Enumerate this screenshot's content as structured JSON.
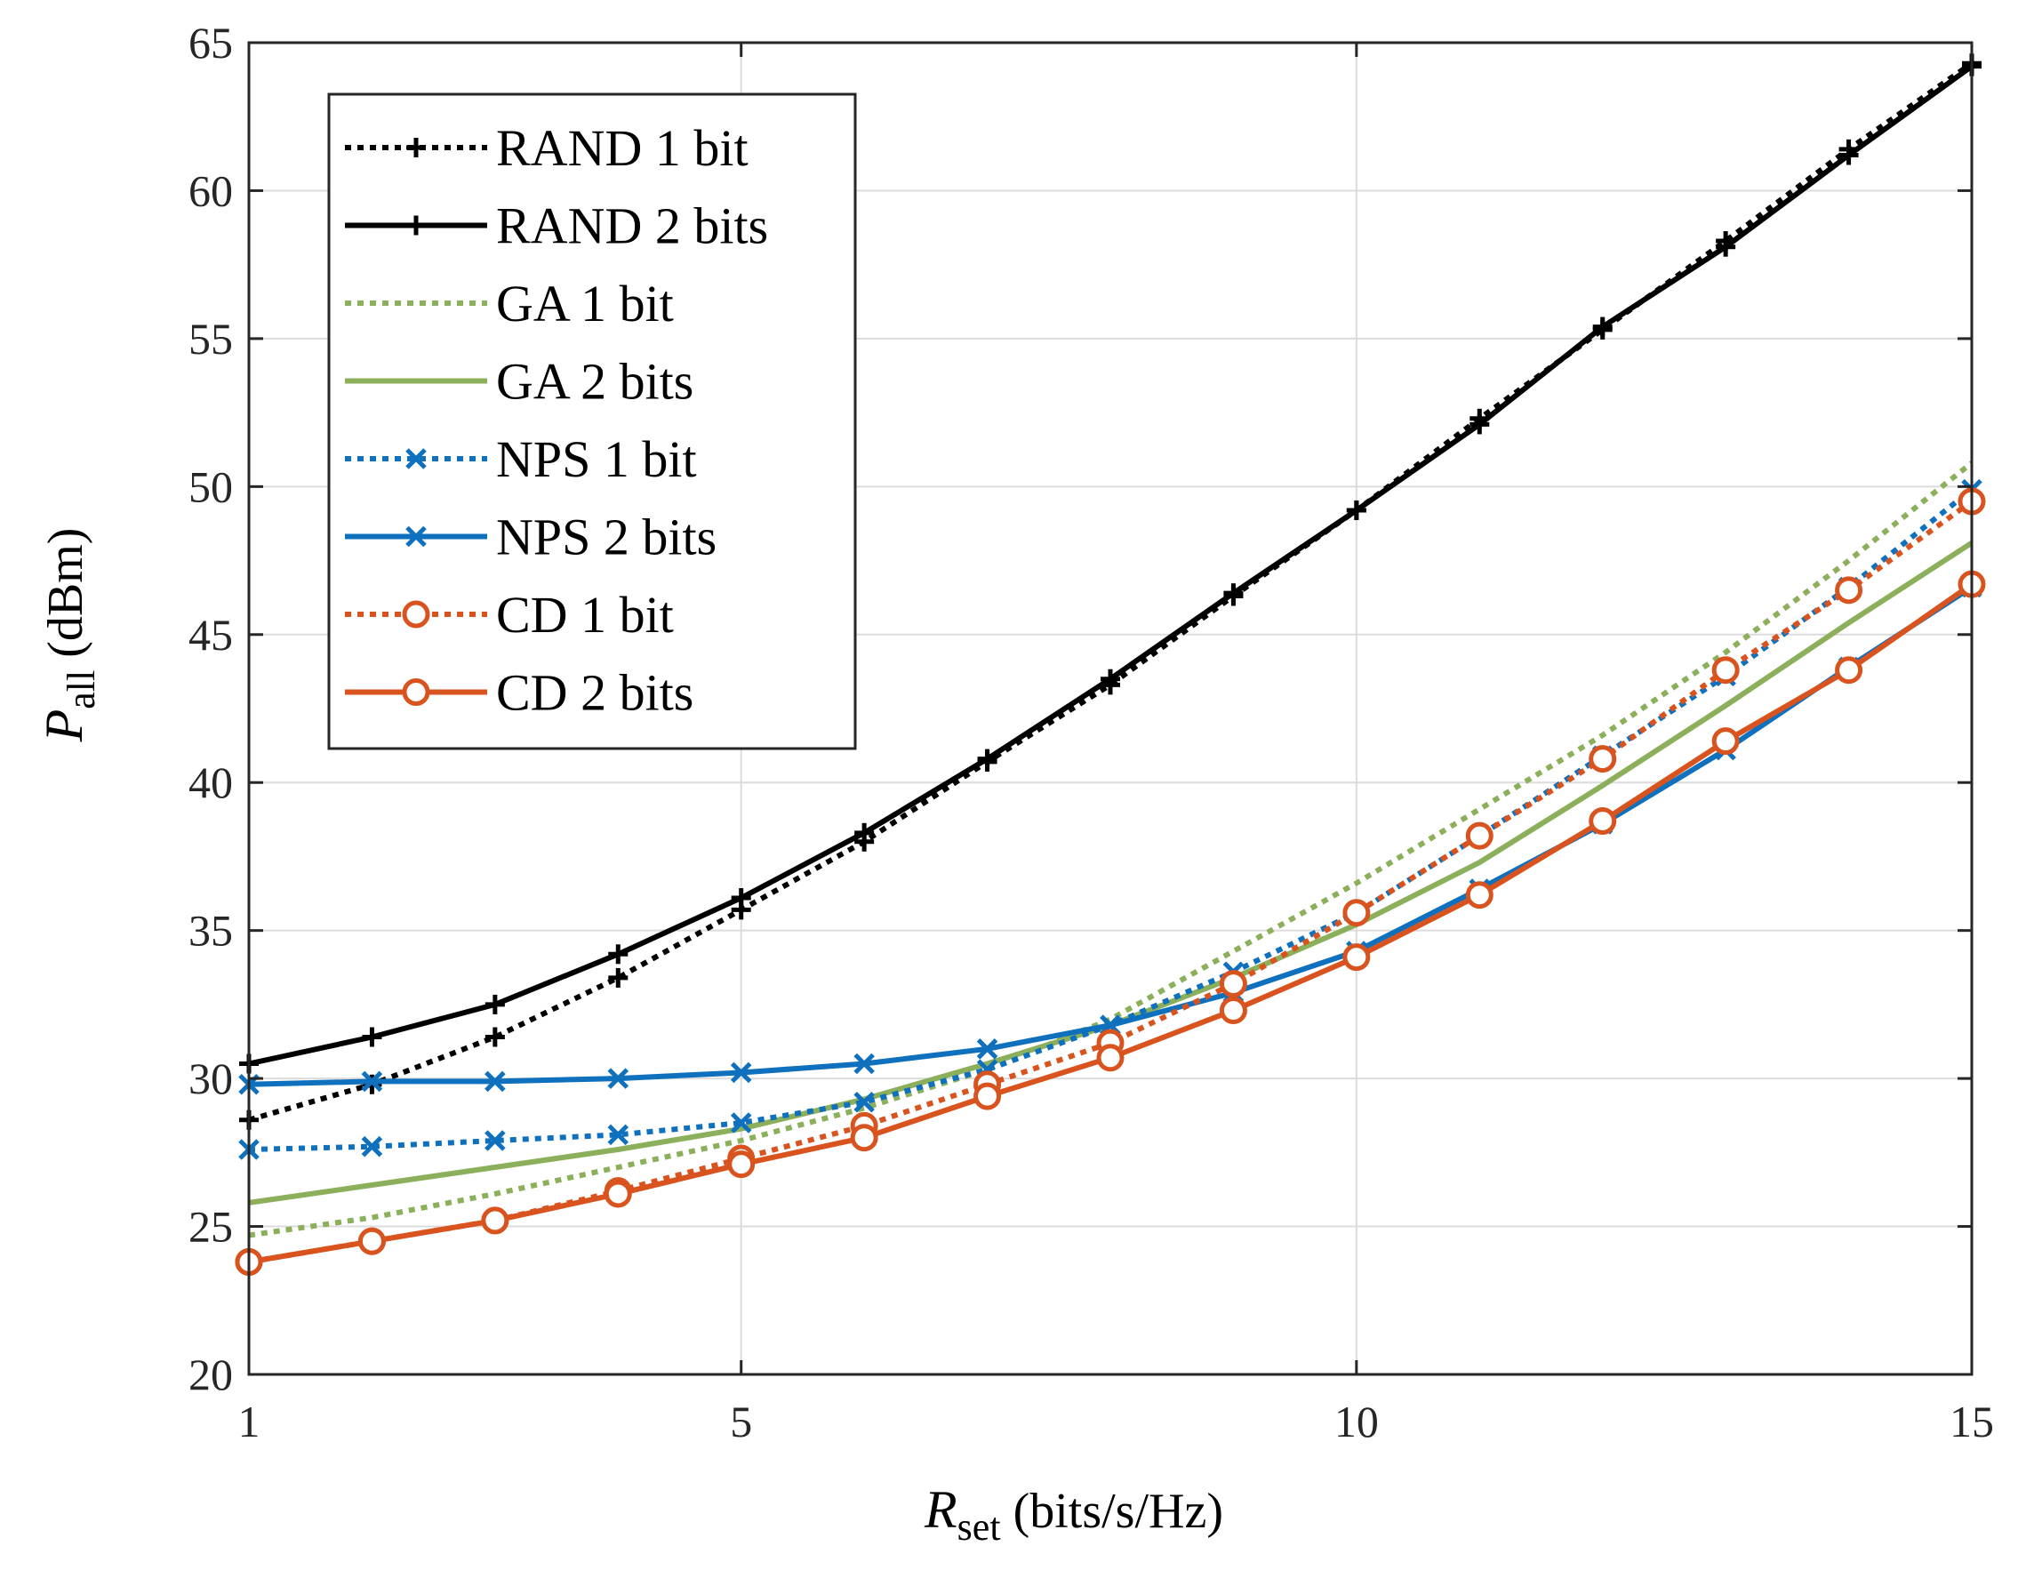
{
  "chart_data": {
    "type": "line",
    "title": "",
    "xlabel": {
      "main": "R",
      "sub": "set",
      "unit": " (bits/s/Hz)"
    },
    "ylabel": {
      "main": "P",
      "sub": "all",
      "unit": " (dBm)"
    },
    "xlim": [
      1,
      15
    ],
    "ylim": [
      20,
      65
    ],
    "xticks": [
      1,
      5,
      10,
      15
    ],
    "yticks": [
      20,
      25,
      30,
      35,
      40,
      45,
      50,
      55,
      60,
      65
    ],
    "grid": true,
    "legend_position": "top-left",
    "x": [
      1,
      2,
      3,
      4,
      5,
      6,
      7,
      8,
      9,
      10,
      11,
      12,
      13,
      14,
      15
    ],
    "series": [
      {
        "name": "RAND 1 bit",
        "color": "#000000",
        "dash": "dotted",
        "marker": "plus",
        "values": [
          28.6,
          29.8,
          31.4,
          33.4,
          35.7,
          38.0,
          40.7,
          43.3,
          46.3,
          49.2,
          52.3,
          55.3,
          58.3,
          61.4,
          64.3
        ]
      },
      {
        "name": "RAND 2 bits",
        "color": "#000000",
        "dash": "solid",
        "marker": "plus",
        "values": [
          30.5,
          31.4,
          32.5,
          34.2,
          36.1,
          38.3,
          40.8,
          43.5,
          46.4,
          49.2,
          52.1,
          55.4,
          58.1,
          61.2,
          64.2
        ]
      },
      {
        "name": "GA 1 bit",
        "color": "#8BAF5A",
        "dash": "dotted",
        "marker": "none",
        "values": [
          24.7,
          25.3,
          26.1,
          27.0,
          27.9,
          29.0,
          30.3,
          32.0,
          34.3,
          36.6,
          39.1,
          41.6,
          44.4,
          47.5,
          50.8
        ]
      },
      {
        "name": "GA 2 bits",
        "color": "#8BAF5A",
        "dash": "solid",
        "marker": "none",
        "values": [
          25.8,
          26.4,
          27.0,
          27.6,
          28.3,
          29.3,
          30.5,
          31.8,
          33.4,
          35.2,
          37.3,
          39.9,
          42.6,
          45.4,
          48.1
        ]
      },
      {
        "name": "NPS 1 bit",
        "color": "#0F70BD",
        "dash": "dotted",
        "marker": "x",
        "values": [
          27.6,
          27.7,
          27.9,
          28.1,
          28.5,
          29.2,
          30.3,
          31.8,
          33.6,
          35.6,
          38.2,
          40.9,
          43.6,
          46.6,
          49.9
        ]
      },
      {
        "name": "NPS 2 bits",
        "color": "#0F70BD",
        "dash": "solid",
        "marker": "x",
        "values": [
          29.8,
          29.9,
          29.9,
          30.0,
          30.2,
          30.5,
          31.0,
          31.8,
          32.9,
          34.3,
          36.4,
          38.6,
          41.1,
          43.9,
          46.6
        ]
      },
      {
        "name": "CD 1 bit",
        "color": "#D9531E",
        "dash": "dotted",
        "marker": "circle",
        "values": [
          23.8,
          24.5,
          25.2,
          26.2,
          27.3,
          28.4,
          29.8,
          31.2,
          33.2,
          35.6,
          38.2,
          40.8,
          43.8,
          46.5,
          49.5
        ]
      },
      {
        "name": "CD 2 bits",
        "color": "#D9531E",
        "dash": "solid",
        "marker": "circle",
        "values": [
          23.8,
          24.5,
          25.2,
          26.1,
          27.1,
          28.0,
          29.4,
          30.7,
          32.3,
          34.1,
          36.2,
          38.7,
          41.4,
          43.8,
          46.7
        ]
      }
    ]
  }
}
